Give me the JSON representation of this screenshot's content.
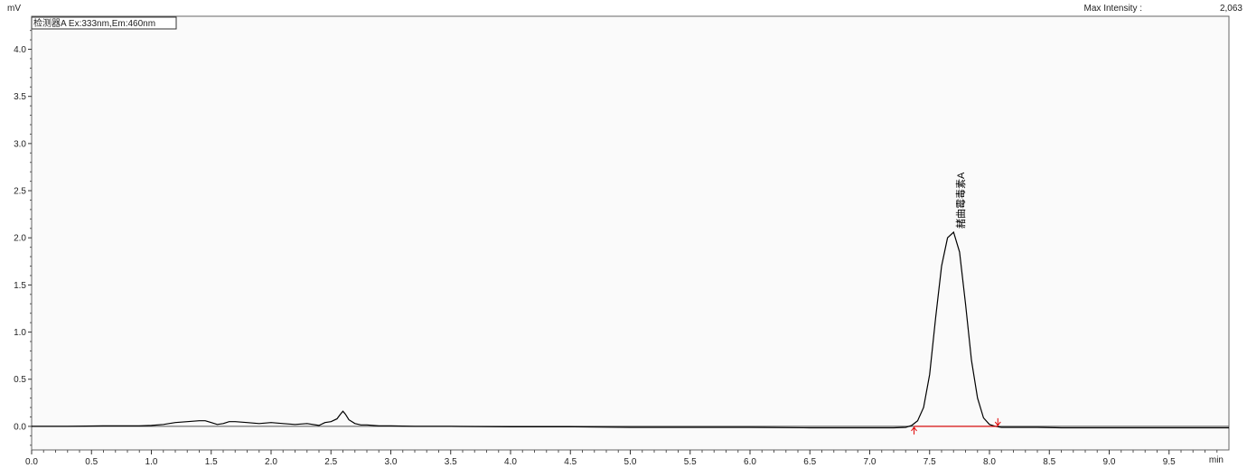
{
  "chart_data": {
    "type": "line",
    "title": "",
    "xlabel": "min",
    "ylabel": "mV",
    "xlim": [
      0.0,
      10.0
    ],
    "ylim": [
      -0.25,
      4.35
    ],
    "x_ticks": [
      "0.0",
      "0.5",
      "1.0",
      "1.5",
      "2.0",
      "2.5",
      "3.0",
      "3.5",
      "4.0",
      "4.5",
      "5.0",
      "5.5",
      "6.0",
      "6.5",
      "7.0",
      "7.5",
      "8.0",
      "8.5",
      "9.0",
      "9.5"
    ],
    "y_ticks": [
      "0.0",
      "0.5",
      "1.0",
      "1.5",
      "2.0",
      "2.5",
      "3.0",
      "3.5",
      "4.0"
    ],
    "detector_label": "检测器A Ex:333nm,Em:460nm",
    "max_intensity_label": "Max Intensity :",
    "max_intensity_value": "2,063",
    "series": [
      {
        "x": [
          0.0,
          0.3,
          0.6,
          0.9,
          1.0,
          1.1,
          1.2,
          1.3,
          1.4,
          1.45,
          1.5,
          1.55,
          1.6,
          1.65,
          1.7,
          1.8,
          1.9,
          2.0,
          2.1,
          2.2,
          2.3,
          2.4,
          2.45,
          2.5,
          2.55,
          2.58,
          2.6,
          2.62,
          2.65,
          2.7,
          2.75,
          2.8,
          2.9,
          3.0,
          3.2,
          3.5,
          4.0,
          4.5,
          5.0,
          5.5,
          6.0,
          6.5,
          7.0,
          7.2,
          7.3,
          7.35,
          7.4,
          7.45,
          7.5,
          7.55,
          7.6,
          7.65,
          7.7,
          7.75,
          7.8,
          7.85,
          7.9,
          7.95,
          8.0,
          8.05,
          8.1,
          8.2,
          8.4,
          8.6,
          8.8,
          9.0,
          9.3,
          9.6,
          10.0
        ],
        "y": [
          0.0,
          0.0,
          0.005,
          0.005,
          0.01,
          0.02,
          0.04,
          0.05,
          0.06,
          0.06,
          0.04,
          0.02,
          0.03,
          0.05,
          0.05,
          0.04,
          0.03,
          0.04,
          0.03,
          0.02,
          0.03,
          0.01,
          0.04,
          0.05,
          0.08,
          0.13,
          0.16,
          0.13,
          0.07,
          0.03,
          0.015,
          0.015,
          0.005,
          0.005,
          0.0,
          0.0,
          -0.005,
          -0.005,
          -0.01,
          -0.01,
          -0.01,
          -0.015,
          -0.015,
          -0.015,
          -0.01,
          0.01,
          0.06,
          0.2,
          0.55,
          1.15,
          1.7,
          2.0,
          2.06,
          1.85,
          1.3,
          0.7,
          0.3,
          0.09,
          0.02,
          0.0,
          -0.01,
          -0.01,
          -0.01,
          -0.015,
          -0.015,
          -0.015,
          -0.015,
          -0.015,
          -0.015
        ]
      }
    ],
    "peak": {
      "label": "赭曲霉毒素A",
      "x": 7.7,
      "y": 2.06
    },
    "baseline": {
      "x_start": 7.37,
      "x_end": 8.07,
      "y": 0.0
    },
    "colors": {
      "trace": "#000000",
      "baseline": "#e00000",
      "plot_bg": "#fafafa"
    }
  }
}
